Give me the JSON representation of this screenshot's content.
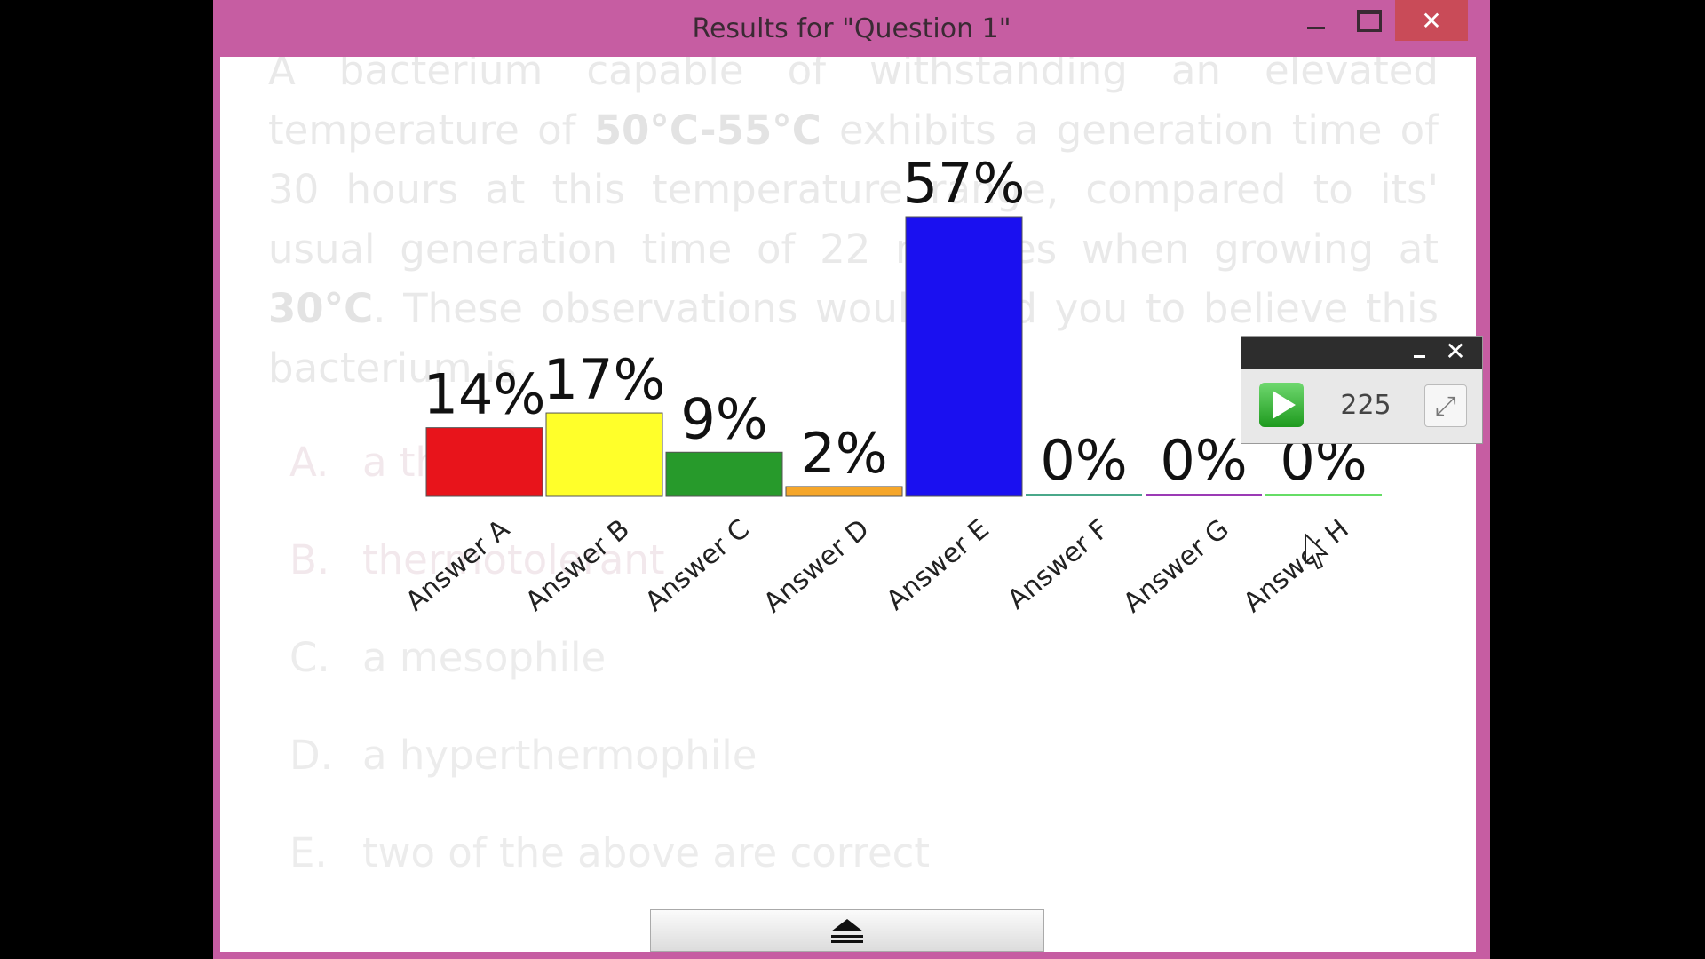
{
  "window": {
    "title": "Results for \"Question 1\"",
    "close_glyph": "✕",
    "accent_color": "#c65da2"
  },
  "question": {
    "part1": "A bacterium capable of withstanding an elevated temperature of ",
    "bold1": "50°C-55°C",
    "part2": " exhibits a generation time of 30 hours at this temperature range, compared to its' usual generation time of 22 minutes when growing at ",
    "bold2": "30°C",
    "part3": ".  These observations would lead you to believe this bacterium is",
    "answers": [
      {
        "letter": "A.",
        "text": "a thermophile"
      },
      {
        "letter": "B.",
        "text": "thermotolerant"
      },
      {
        "letter": "C.",
        "text": "a mesophile"
      },
      {
        "letter": "D.",
        "text": "a hyperthermophile"
      },
      {
        "letter": "E.",
        "text": "two of the above are correct"
      }
    ]
  },
  "chart_data": {
    "type": "bar",
    "categories": [
      "Answer A",
      "Answer B",
      "Answer C",
      "Answer D",
      "Answer E",
      "Answer F",
      "Answer G",
      "Answer H"
    ],
    "values": [
      14,
      17,
      9,
      2,
      57,
      0,
      0,
      0
    ],
    "labels": [
      "14%",
      "17%",
      "9%",
      "2%",
      "57%",
      "0%",
      "0%",
      "0%"
    ],
    "colors": [
      "#e8141b",
      "#ffff2a",
      "#279a2b",
      "#f5a62a",
      "#1a10f0",
      "#4aa88a",
      "#9b3ab5",
      "#66dd66"
    ],
    "ylim": [
      0,
      57
    ]
  },
  "mini_toolbar": {
    "count": "225",
    "close_glyph": "✕",
    "expand_glyph": "⤢",
    "icons": [
      "play-icon",
      "expand-icon"
    ]
  }
}
